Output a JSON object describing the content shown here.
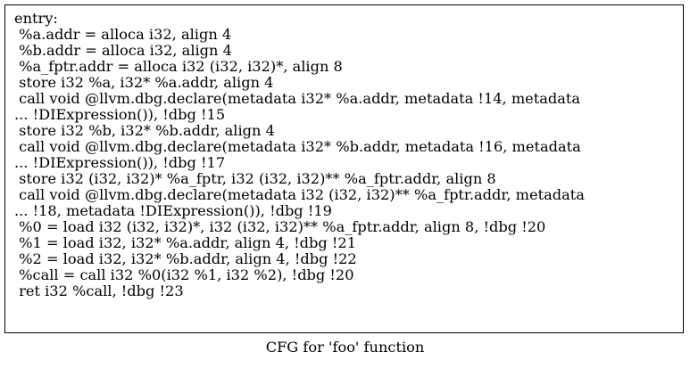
{
  "node": {
    "lines": [
      "entry:",
      " %a.addr = alloca i32, align 4",
      " %b.addr = alloca i32, align 4",
      " %a_fptr.addr = alloca i32 (i32, i32)*, align 8",
      " store i32 %a, i32* %a.addr, align 4",
      " call void @llvm.dbg.declare(metadata i32* %a.addr, metadata !14, metadata",
      "... !DIExpression()), !dbg !15",
      " store i32 %b, i32* %b.addr, align 4",
      " call void @llvm.dbg.declare(metadata i32* %b.addr, metadata !16, metadata",
      "... !DIExpression()), !dbg !17",
      " store i32 (i32, i32)* %a_fptr, i32 (i32, i32)** %a_fptr.addr, align 8",
      " call void @llvm.dbg.declare(metadata i32 (i32, i32)** %a_fptr.addr, metadata",
      "... !18, metadata !DIExpression()), !dbg !19",
      " %0 = load i32 (i32, i32)*, i32 (i32, i32)** %a_fptr.addr, align 8, !dbg !20",
      " %1 = load i32, i32* %a.addr, align 4, !dbg !21",
      " %2 = load i32, i32* %b.addr, align 4, !dbg !22",
      " %call = call i32 %0(i32 %1, i32 %2), !dbg !20",
      " ret i32 %call, !dbg !23"
    ]
  },
  "graph": {
    "label": "CFG for 'foo' function"
  }
}
